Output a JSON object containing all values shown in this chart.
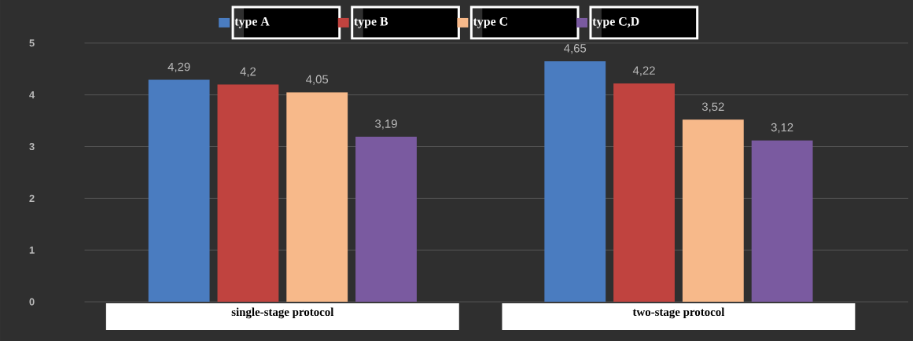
{
  "chart_data": {
    "type": "bar",
    "categories": [
      "single-stage protocol",
      "two-stage protocol"
    ],
    "series": [
      {
        "name": "type A",
        "color": "#4a7cc0",
        "values": [
          4.29,
          4.65
        ],
        "value_labels": [
          "4,29",
          "4,65"
        ]
      },
      {
        "name": "type B",
        "color": "#c0433f",
        "values": [
          4.2,
          4.22
        ],
        "value_labels": [
          "4,2",
          "4,22"
        ]
      },
      {
        "name": "type C",
        "color": "#f7b98a",
        "values": [
          4.05,
          3.52
        ],
        "value_labels": [
          "4,05",
          "3,52"
        ]
      },
      {
        "name": "type C,D",
        "color": "#7a5aa0",
        "values": [
          3.19,
          3.12
        ],
        "value_labels": [
          "3,19",
          "3,12"
        ]
      }
    ],
    "ylim": [
      0,
      5
    ],
    "yticks": [
      0,
      1,
      2,
      3,
      4,
      5
    ],
    "grid": "y",
    "legend": "top"
  }
}
